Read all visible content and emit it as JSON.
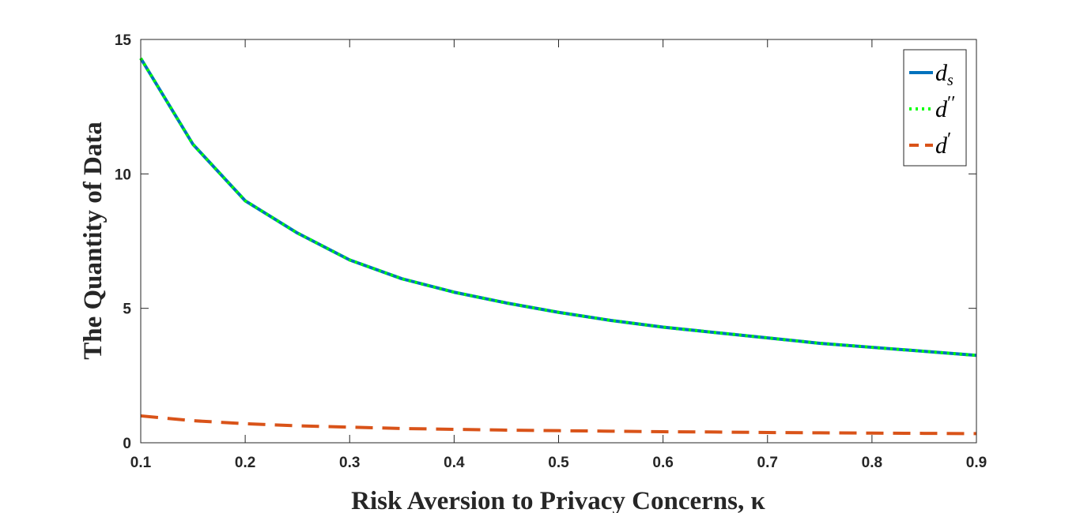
{
  "chart_data": {
    "type": "line",
    "xlabel": "Risk Aversion to Privacy Concerns, κ",
    "ylabel": "The Quantity of Data",
    "xlim": [
      0.1,
      0.9
    ],
    "ylim": [
      0,
      15
    ],
    "xticks": [
      "0.1",
      "0.2",
      "0.3",
      "0.4",
      "0.5",
      "0.6",
      "0.7",
      "0.8",
      "0.9"
    ],
    "yticks": [
      "0",
      "5",
      "10",
      "15"
    ],
    "grid": false,
    "legend_position": "top-right",
    "x": [
      0.1,
      0.15,
      0.2,
      0.25,
      0.3,
      0.35,
      0.4,
      0.45,
      0.5,
      0.55,
      0.6,
      0.65,
      0.7,
      0.75,
      0.8,
      0.85,
      0.9
    ],
    "series": [
      {
        "name": "d_s",
        "label_main": "d",
        "label_sub": "s",
        "color": "#0072bd",
        "style": "solid",
        "values": [
          14.3,
          11.1,
          9.0,
          7.8,
          6.8,
          6.1,
          5.6,
          5.2,
          4.85,
          4.55,
          4.3,
          4.1,
          3.9,
          3.7,
          3.55,
          3.4,
          3.25
        ]
      },
      {
        "name": "d''",
        "label_main": "d",
        "label_sup": "′′",
        "color": "#00ff00",
        "style": "dotted",
        "values": [
          14.3,
          11.1,
          9.0,
          7.8,
          6.8,
          6.1,
          5.6,
          5.2,
          4.85,
          4.55,
          4.3,
          4.1,
          3.9,
          3.7,
          3.55,
          3.4,
          3.25
        ]
      },
      {
        "name": "d'",
        "label_main": "d",
        "label_sup": "′",
        "color": "#d95319",
        "style": "dashed",
        "values": [
          1.0,
          0.82,
          0.71,
          0.63,
          0.58,
          0.53,
          0.5,
          0.47,
          0.45,
          0.43,
          0.41,
          0.4,
          0.38,
          0.37,
          0.36,
          0.35,
          0.34
        ]
      }
    ]
  }
}
